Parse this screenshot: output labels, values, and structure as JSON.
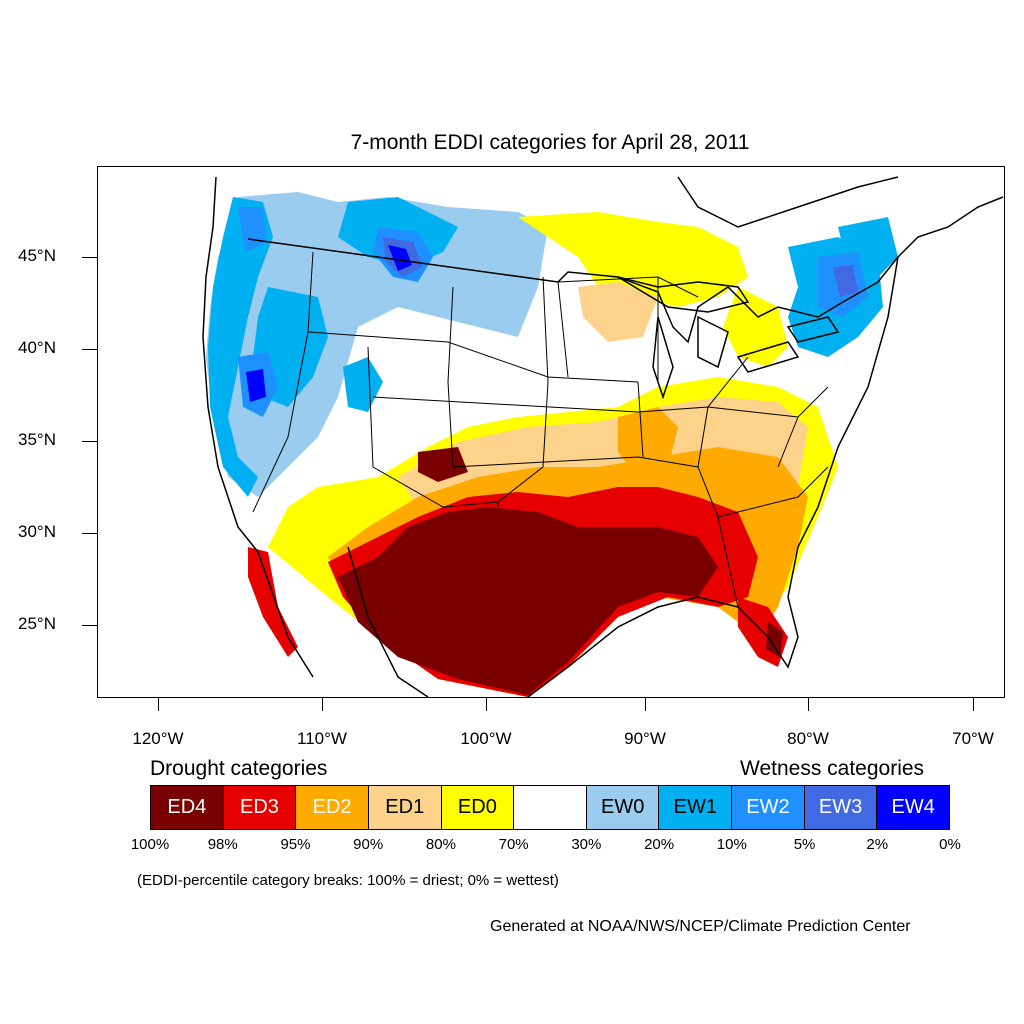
{
  "title": "7-month EDDI categories for April 28, 2011",
  "lat_labels": [
    "45°N",
    "40°N",
    "35°N",
    "30°N",
    "25°N"
  ],
  "lon_labels": [
    "120°W",
    "110°W",
    "100°W",
    "90°W",
    "80°W",
    "70°W"
  ],
  "legend": {
    "drought_heading": "Drought categories",
    "wetness_heading": "Wetness categories",
    "categories": [
      {
        "label": "ED4",
        "color": "#7a0000",
        "text_color": "#ffffff"
      },
      {
        "label": "ED3",
        "color": "#e60000",
        "text_color": "#ffffff"
      },
      {
        "label": "ED2",
        "color": "#ffaa00",
        "text_color": "#ffffff"
      },
      {
        "label": "ED1",
        "color": "#fdd28a",
        "text_color": "#000000"
      },
      {
        "label": "ED0",
        "color": "#ffff00",
        "text_color": "#000000"
      },
      {
        "label": "",
        "color": "#ffffff",
        "text_color": "#000000"
      },
      {
        "label": "EW0",
        "color": "#99ccee",
        "text_color": "#000000"
      },
      {
        "label": "EW1",
        "color": "#00b0f0",
        "text_color": "#000000"
      },
      {
        "label": "EW2",
        "color": "#1e90ff",
        "text_color": "#ffffff"
      },
      {
        "label": "EW3",
        "color": "#4169e1",
        "text_color": "#ffffff"
      },
      {
        "label": "EW4",
        "color": "#0000ff",
        "text_color": "#ffffff"
      }
    ],
    "breaks": [
      "100%",
      "98%",
      "95%",
      "90%",
      "80%",
      "70%",
      "30%",
      "20%",
      "10%",
      "5%",
      "2%",
      "0%"
    ],
    "note": "(EDDI-percentile category break​s: 100% = driest; 0% = wettest)"
  },
  "credit": "Generated at NOAA/NWS/NCEP/Climate Prediction Center"
}
